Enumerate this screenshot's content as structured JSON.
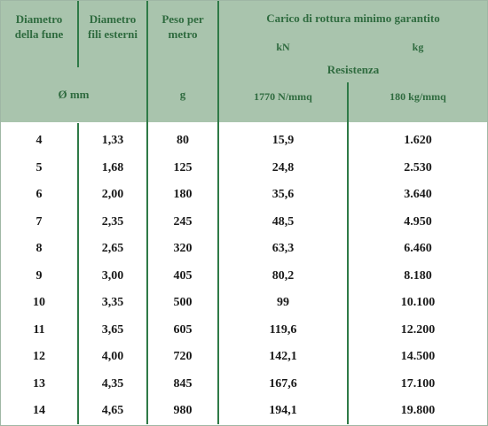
{
  "header": {
    "col_diam_fune": "Diametro\ndella fune",
    "col_diam_fili": "Diametro\nfili esterni",
    "col_peso": "Peso per\nmetro",
    "carico_title": "Carico di rottura minimo garantito",
    "unit_kn": "kN",
    "unit_kg": "kg",
    "resistenza": "Resistenza",
    "unit_mm": "Ø mm",
    "unit_g": "g",
    "res_1770": "1770  N/mmq",
    "res_180": "180  kg/mmq"
  },
  "rows": [
    [
      "4",
      "1,33",
      "80",
      "15,9",
      "1.620"
    ],
    [
      "5",
      "1,68",
      "125",
      "24,8",
      "2.530"
    ],
    [
      "6",
      "2,00",
      "180",
      "35,6",
      "3.640"
    ],
    [
      "7",
      "2,35",
      "245",
      "48,5",
      "4.950"
    ],
    [
      "8",
      "2,65",
      "320",
      "63,3",
      "6.460"
    ],
    [
      "9",
      "3,00",
      "405",
      "80,2",
      "8.180"
    ],
    [
      "10",
      "3,35",
      "500",
      "99",
      "10.100"
    ],
    [
      "11",
      "3,65",
      "605",
      "119,6",
      "12.200"
    ],
    [
      "12",
      "4,00",
      "720",
      "142,1",
      "14.500"
    ],
    [
      "13",
      "4,35",
      "845",
      "167,6",
      "17.100"
    ],
    [
      "14",
      "4,65",
      "980",
      "194,1",
      "19.800"
    ]
  ],
  "colors": {
    "header_bg": "#a9c4ad",
    "header_text": "#2f6b3f",
    "rule": "#2f7a47"
  }
}
